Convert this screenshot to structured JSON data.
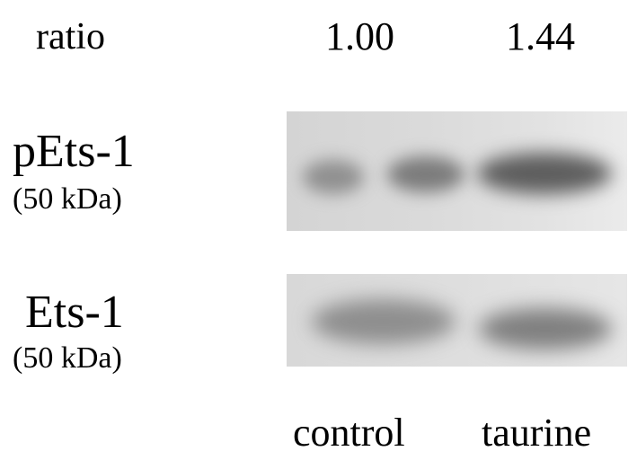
{
  "ratio": {
    "label": "ratio",
    "values": [
      "1.00",
      "1.44"
    ]
  },
  "proteins": [
    {
      "name": "pEts-1",
      "size": "(50 kDa)"
    },
    {
      "name": "Ets-1",
      "size": "(50 kDa)"
    }
  ],
  "lanes": [
    "control",
    "taurine"
  ]
}
